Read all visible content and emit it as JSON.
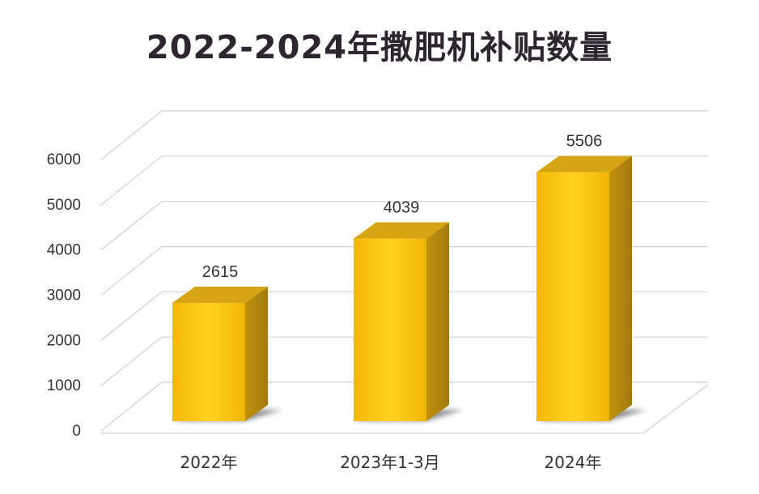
{
  "chart_data": {
    "type": "bar",
    "title": "2022-2024年撒肥机补贴数量",
    "categories": [
      "2022年",
      "2023年1-3月",
      "2024年"
    ],
    "values": [
      2615,
      4039,
      5506
    ],
    "data_labels": [
      "2615",
      "4039",
      "5506"
    ],
    "yticks": [
      "0",
      "1000",
      "2000",
      "3000",
      "4000",
      "5000",
      "6000"
    ],
    "ylim": [
      0,
      6000
    ],
    "xlabel": "",
    "ylabel": "",
    "grid": true,
    "style": "3d",
    "colors": {
      "bar_front": "#f7c20a",
      "bar_side": "#b5880e",
      "bar_top": "#d6a514",
      "grid": "#d0d0d0"
    }
  }
}
